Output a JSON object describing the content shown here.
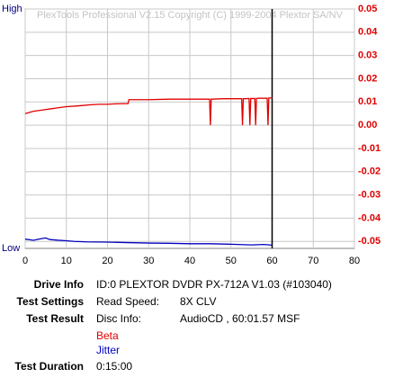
{
  "chart_data": {
    "type": "line",
    "title": "PlexTools Professional V2.15 Copyright (C) 1999-2004 Plextor SA/NV",
    "left_axis_labels": [
      "High",
      "Low"
    ],
    "xlim": [
      0,
      80
    ],
    "xticks": [
      0,
      10,
      20,
      30,
      40,
      50,
      60,
      70,
      80
    ],
    "ylim": [
      -0.053,
      0.05
    ],
    "yticks": [
      0.05,
      0.04,
      0.03,
      0.02,
      0.01,
      {
        "value": 0,
        "label": "0.00"
      },
      -0.01,
      -0.02,
      -0.03,
      -0.04,
      -0.05
    ],
    "grid": true,
    "marker_x": 60,
    "series": [
      {
        "name": "Beta",
        "color": "#e00000",
        "x": [
          0,
          2,
          4,
          6,
          8,
          10,
          12,
          14,
          16,
          18,
          20,
          22,
          24,
          25,
          25.2,
          28,
          30,
          35,
          40,
          44.8,
          45,
          45.2,
          45.4,
          48,
          52.6,
          52.8,
          53,
          53.4,
          54.4,
          54.6,
          54.8,
          55.2,
          55.8,
          56,
          56.2,
          56.6,
          58.8,
          59,
          59.2,
          59.6,
          60
        ],
        "values": [
          0.005,
          0.006,
          0.0065,
          0.007,
          0.0075,
          0.008,
          0.0082,
          0.0085,
          0.0088,
          0.009,
          0.009,
          0.0092,
          0.0093,
          0.0093,
          0.011,
          0.011,
          0.011,
          0.0112,
          0.0112,
          0.0112,
          0,
          0.0112,
          0.0112,
          0.0114,
          0.0114,
          0,
          0.0114,
          0.0114,
          0.0115,
          0,
          0.0115,
          0.0115,
          0.0115,
          0,
          0.0115,
          0.0116,
          0.0116,
          0,
          0.0117,
          0.0117,
          0.0117
        ]
      },
      {
        "name": "Jitter",
        "color": "#0000c0",
        "x": [
          0,
          2,
          4,
          5,
          6,
          8,
          10,
          12,
          15,
          20,
          25,
          30,
          35,
          40,
          45,
          50,
          55,
          58,
          60
        ],
        "values": [
          -0.049,
          -0.0495,
          -0.0488,
          -0.0485,
          -0.0492,
          -0.0495,
          -0.0497,
          -0.05,
          -0.0502,
          -0.0503,
          -0.0505,
          -0.0507,
          -0.0508,
          -0.051,
          -0.051,
          -0.0512,
          -0.0515,
          -0.0513,
          -0.0516
        ]
      }
    ]
  },
  "info": {
    "drive_label": "Drive Info",
    "drive_value": "ID:0 PLEXTOR DVDR PX-712A V1.03 (#103040)",
    "settings_label": "Test Settings",
    "settings_key": "Read Speed:",
    "settings_value": "8X CLV",
    "result_label": "Test Result",
    "result_key": "Disc Info:",
    "result_value": "AudioCD , 60:01.57 MSF",
    "duration_label": "Test Duration",
    "duration_value": "0:15:00"
  }
}
